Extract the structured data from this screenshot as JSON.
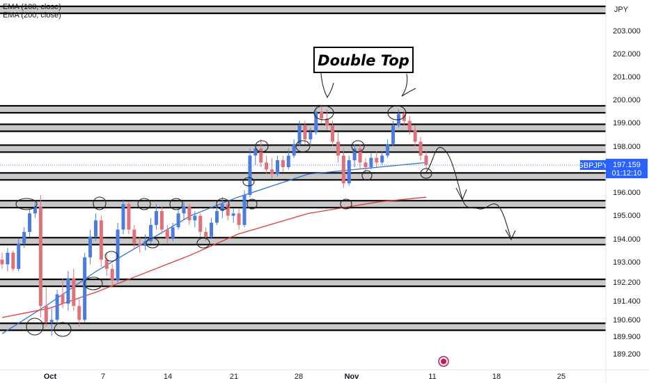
{
  "chart_data": {
    "type": "candlestick",
    "symbol": "GBPJPY",
    "currency": "JPY",
    "legend": [
      "EMA (100, close)",
      "EMA (200, close)"
    ],
    "y_ticks": [
      "203.000",
      "202.000",
      "201.000",
      "200.000",
      "199.000",
      "198.000",
      "196.000",
      "195.000",
      "194.000",
      "193.000",
      "192.200",
      "191.400",
      "190.600",
      "189.900",
      "189.200"
    ],
    "x_ticks": [
      "Oct",
      "7",
      "14",
      "21",
      "28",
      "Nov",
      "11",
      "18",
      "25"
    ],
    "price_tag": {
      "symbol": "GBPJPY",
      "price": "197.159",
      "countdown": "01:12:10"
    },
    "annotation": "Double Top",
    "horizontal_levels": [
      203.9,
      199.6,
      198.8,
      197.9,
      196.7,
      195.5,
      193.9,
      192.1,
      190.2
    ],
    "candles": [
      [
        193.1,
        193.4,
        192.7,
        192.9
      ],
      [
        192.9,
        193.6,
        192.6,
        193.4
      ],
      [
        193.4,
        193.5,
        192.6,
        192.7
      ],
      [
        192.7,
        194.0,
        192.6,
        193.8
      ],
      [
        193.8,
        194.5,
        193.6,
        194.3
      ],
      [
        194.3,
        195.3,
        194.1,
        195.1
      ],
      [
        195.1,
        195.6,
        194.9,
        195.4
      ],
      [
        195.4,
        195.9,
        190.6,
        191.1
      ],
      [
        191.1,
        191.9,
        190.2,
        190.4
      ],
      [
        190.4,
        191.0,
        189.8,
        190.5
      ],
      [
        190.5,
        191.8,
        190.3,
        191.6
      ],
      [
        191.6,
        192.3,
        191.0,
        191.2
      ],
      [
        191.2,
        192.6,
        190.9,
        192.3
      ],
      [
        192.3,
        192.7,
        190.9,
        191.1
      ],
      [
        191.1,
        191.4,
        190.2,
        190.5
      ],
      [
        190.5,
        193.4,
        190.4,
        193.2
      ],
      [
        193.2,
        194.4,
        192.9,
        194.1
      ],
      [
        194.1,
        195.1,
        193.9,
        194.8
      ],
      [
        194.8,
        195.0,
        192.8,
        193.1
      ],
      [
        193.1,
        193.4,
        192.4,
        192.7
      ],
      [
        192.7,
        192.9,
        191.9,
        192.2
      ],
      [
        192.2,
        194.7,
        192.1,
        194.4
      ],
      [
        194.4,
        195.7,
        194.2,
        195.5
      ],
      [
        195.5,
        195.6,
        194.2,
        194.4
      ],
      [
        194.4,
        194.6,
        193.6,
        193.8
      ],
      [
        193.8,
        194.1,
        193.4,
        193.7
      ],
      [
        193.7,
        194.2,
        193.5,
        193.9
      ],
      [
        193.9,
        194.9,
        193.8,
        194.6
      ],
      [
        194.6,
        195.5,
        194.4,
        195.2
      ],
      [
        195.2,
        195.4,
        194.2,
        194.4
      ],
      [
        194.4,
        194.6,
        193.8,
        194.0
      ],
      [
        194.0,
        194.7,
        193.9,
        194.5
      ],
      [
        194.5,
        195.3,
        194.4,
        195.1
      ],
      [
        195.1,
        195.6,
        194.8,
        195.4
      ],
      [
        195.4,
        195.5,
        194.6,
        194.8
      ],
      [
        194.8,
        195.2,
        194.5,
        195.0
      ],
      [
        195.0,
        195.1,
        194.1,
        194.3
      ],
      [
        194.3,
        194.5,
        193.9,
        194.1
      ],
      [
        194.1,
        194.9,
        194.0,
        194.7
      ],
      [
        194.7,
        195.4,
        194.6,
        195.2
      ],
      [
        195.2,
        195.8,
        194.9,
        195.5
      ],
      [
        195.5,
        195.6,
        194.8,
        195.0
      ],
      [
        195.0,
        195.3,
        194.7,
        195.1
      ],
      [
        195.1,
        195.3,
        194.4,
        194.6
      ],
      [
        194.6,
        196.1,
        194.5,
        195.9
      ],
      [
        195.9,
        197.9,
        195.8,
        197.6
      ],
      [
        197.6,
        198.1,
        197.2,
        197.9
      ],
      [
        197.9,
        198.3,
        197.1,
        197.3
      ],
      [
        197.3,
        197.6,
        196.8,
        197.0
      ],
      [
        197.0,
        197.5,
        196.6,
        196.8
      ],
      [
        196.8,
        197.6,
        196.7,
        197.4
      ],
      [
        197.4,
        197.6,
        196.9,
        197.1
      ],
      [
        197.1,
        197.9,
        197.0,
        197.6
      ],
      [
        197.6,
        198.3,
        197.5,
        198.1
      ],
      [
        198.1,
        199.1,
        198.0,
        198.9
      ],
      [
        198.9,
        199.1,
        198.1,
        198.3
      ],
      [
        198.3,
        198.8,
        198.0,
        198.6
      ],
      [
        198.6,
        199.7,
        198.5,
        199.5
      ],
      [
        199.5,
        199.8,
        199.0,
        199.2
      ],
      [
        199.2,
        199.6,
        198.7,
        198.9
      ],
      [
        198.9,
        199.1,
        198.0,
        198.2
      ],
      [
        198.2,
        198.6,
        197.3,
        197.6
      ],
      [
        197.6,
        197.9,
        196.2,
        196.4
      ],
      [
        196.4,
        197.6,
        196.3,
        197.4
      ],
      [
        197.4,
        198.1,
        197.1,
        197.9
      ],
      [
        197.9,
        198.1,
        197.0,
        197.3
      ],
      [
        197.3,
        197.5,
        196.9,
        197.1
      ],
      [
        197.1,
        197.7,
        197.0,
        197.5
      ],
      [
        197.5,
        197.8,
        197.1,
        197.3
      ],
      [
        197.3,
        197.8,
        197.2,
        197.6
      ],
      [
        197.6,
        198.3,
        197.5,
        198.1
      ],
      [
        198.1,
        199.1,
        198.0,
        198.9
      ],
      [
        198.9,
        199.6,
        198.8,
        199.4
      ],
      [
        199.4,
        199.6,
        198.9,
        199.1
      ],
      [
        199.1,
        199.3,
        198.5,
        198.7
      ],
      [
        198.7,
        198.9,
        198.0,
        198.2
      ],
      [
        198.2,
        198.4,
        197.4,
        197.6
      ],
      [
        197.6,
        197.8,
        197.0,
        197.2
      ]
    ],
    "ema100": [
      [
        0,
        189.9
      ],
      [
        40,
        191.2
      ],
      [
        80,
        192.6
      ],
      [
        120,
        193.8
      ],
      [
        160,
        195.0
      ],
      [
        200,
        195.8
      ],
      [
        260,
        196.8
      ],
      [
        320,
        197.1
      ],
      [
        360,
        197.3
      ]
    ],
    "ema200": [
      [
        0,
        190.6
      ],
      [
        40,
        191.0
      ],
      [
        80,
        191.7
      ],
      [
        120,
        192.5
      ],
      [
        160,
        193.3
      ],
      [
        200,
        194.2
      ],
      [
        260,
        195.1
      ],
      [
        320,
        195.6
      ],
      [
        360,
        195.8
      ]
    ]
  }
}
